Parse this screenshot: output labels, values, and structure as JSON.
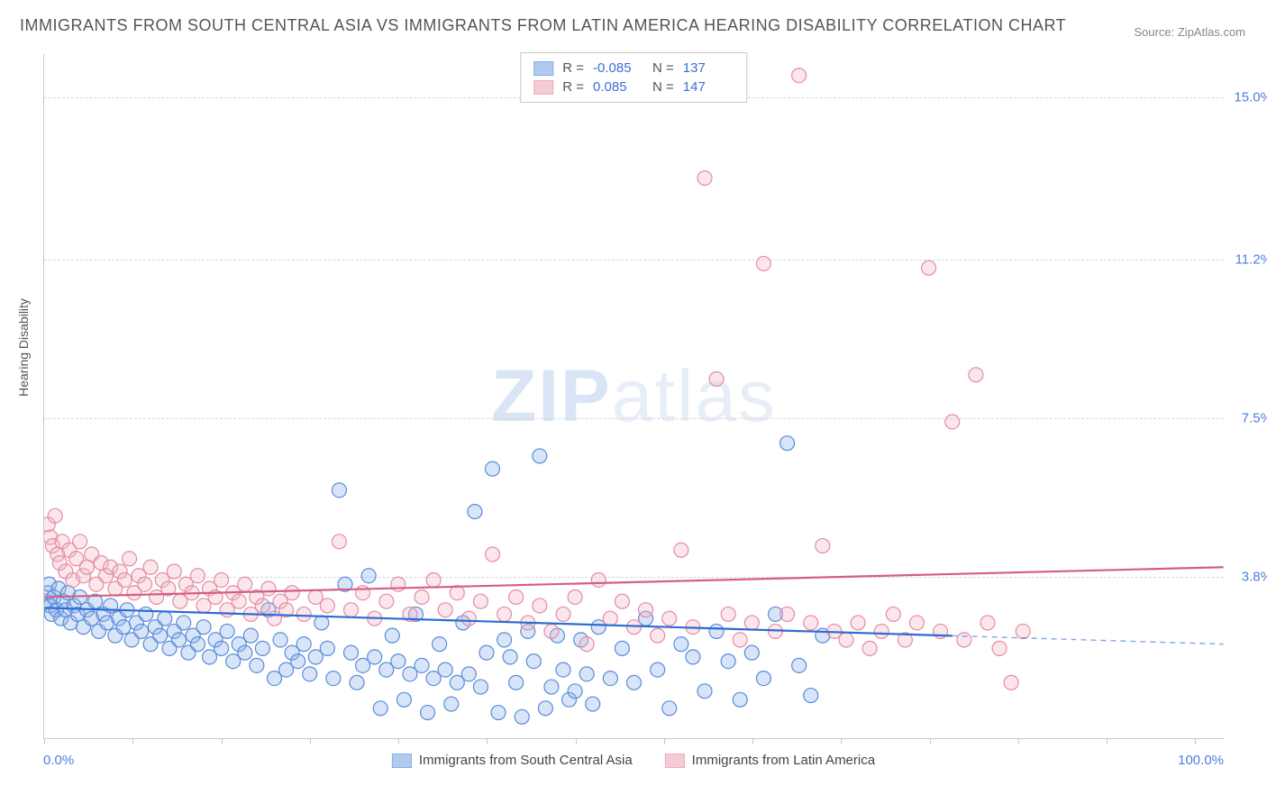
{
  "title": "IMMIGRANTS FROM SOUTH CENTRAL ASIA VS IMMIGRANTS FROM LATIN AMERICA HEARING DISABILITY CORRELATION CHART",
  "source": "Source: ZipAtlas.com",
  "watermark": {
    "zip": "ZIP",
    "atlas": "atlas"
  },
  "ylabel": "Hearing Disability",
  "chart": {
    "type": "scatter",
    "xlim": [
      0,
      100
    ],
    "ylim": [
      0,
      16
    ],
    "ytick_labels": [
      "3.8%",
      "7.5%",
      "11.2%",
      "15.0%"
    ],
    "ytick_values": [
      3.8,
      7.5,
      11.2,
      15.0
    ],
    "xtick_left": "0.0%",
    "xtick_right": "100.0%",
    "xtick_positions": [
      0,
      7.5,
      15,
      22.5,
      30,
      37.5,
      45,
      52.5,
      60,
      67.5,
      75,
      82.5,
      90,
      97.5
    ],
    "background_color": "#ffffff",
    "grid_color": "#d7d7d7",
    "marker_radius": 8,
    "marker_stroke_width": 1.2,
    "marker_fill_opacity": 0.35,
    "trend_line_width": 2.2,
    "series": [
      {
        "name": "Immigrants from South Central Asia",
        "color_fill": "#8fb4ea",
        "color_stroke": "#5a8bd9",
        "color_line": "#2d6cd3",
        "r": "-0.085",
        "n": "137",
        "trend": {
          "y_at_x0": 3.05,
          "y_at_x100": 2.2,
          "solid_until_x": 77
        },
        "points": [
          [
            0.2,
            3.2
          ],
          [
            0.3,
            3.4
          ],
          [
            0.4,
            3.6
          ],
          [
            0.5,
            3.1
          ],
          [
            0.6,
            2.9
          ],
          [
            0.8,
            3.3
          ],
          [
            1.0,
            3.0
          ],
          [
            1.2,
            3.5
          ],
          [
            1.4,
            2.8
          ],
          [
            1.6,
            3.2
          ],
          [
            1.8,
            3.0
          ],
          [
            2.0,
            3.4
          ],
          [
            2.2,
            2.7
          ],
          [
            2.5,
            3.1
          ],
          [
            2.8,
            2.9
          ],
          [
            3.0,
            3.3
          ],
          [
            3.3,
            2.6
          ],
          [
            3.6,
            3.0
          ],
          [
            4.0,
            2.8
          ],
          [
            4.3,
            3.2
          ],
          [
            4.6,
            2.5
          ],
          [
            5.0,
            2.9
          ],
          [
            5.3,
            2.7
          ],
          [
            5.6,
            3.1
          ],
          [
            6.0,
            2.4
          ],
          [
            6.3,
            2.8
          ],
          [
            6.7,
            2.6
          ],
          [
            7.0,
            3.0
          ],
          [
            7.4,
            2.3
          ],
          [
            7.8,
            2.7
          ],
          [
            8.2,
            2.5
          ],
          [
            8.6,
            2.9
          ],
          [
            9.0,
            2.2
          ],
          [
            9.4,
            2.6
          ],
          [
            9.8,
            2.4
          ],
          [
            10.2,
            2.8
          ],
          [
            10.6,
            2.1
          ],
          [
            11.0,
            2.5
          ],
          [
            11.4,
            2.3
          ],
          [
            11.8,
            2.7
          ],
          [
            12.2,
            2.0
          ],
          [
            12.6,
            2.4
          ],
          [
            13.0,
            2.2
          ],
          [
            13.5,
            2.6
          ],
          [
            14.0,
            1.9
          ],
          [
            14.5,
            2.3
          ],
          [
            15.0,
            2.1
          ],
          [
            15.5,
            2.5
          ],
          [
            16.0,
            1.8
          ],
          [
            16.5,
            2.2
          ],
          [
            17.0,
            2.0
          ],
          [
            17.5,
            2.4
          ],
          [
            18.0,
            1.7
          ],
          [
            18.5,
            2.1
          ],
          [
            19.0,
            3.0
          ],
          [
            19.5,
            1.4
          ],
          [
            20.0,
            2.3
          ],
          [
            20.5,
            1.6
          ],
          [
            21.0,
            2.0
          ],
          [
            21.5,
            1.8
          ],
          [
            22.0,
            2.2
          ],
          [
            22.5,
            1.5
          ],
          [
            23.0,
            1.9
          ],
          [
            23.5,
            2.7
          ],
          [
            24.0,
            2.1
          ],
          [
            24.5,
            1.4
          ],
          [
            25.0,
            5.8
          ],
          [
            25.5,
            3.6
          ],
          [
            26.0,
            2.0
          ],
          [
            26.5,
            1.3
          ],
          [
            27.0,
            1.7
          ],
          [
            27.5,
            3.8
          ],
          [
            28.0,
            1.9
          ],
          [
            28.5,
            0.7
          ],
          [
            29.0,
            1.6
          ],
          [
            29.5,
            2.4
          ],
          [
            30.0,
            1.8
          ],
          [
            30.5,
            0.9
          ],
          [
            31.0,
            1.5
          ],
          [
            31.5,
            2.9
          ],
          [
            32.0,
            1.7
          ],
          [
            32.5,
            0.6
          ],
          [
            33.0,
            1.4
          ],
          [
            33.5,
            2.2
          ],
          [
            34.0,
            1.6
          ],
          [
            34.5,
            0.8
          ],
          [
            35.0,
            1.3
          ],
          [
            35.5,
            2.7
          ],
          [
            36.0,
            1.5
          ],
          [
            36.5,
            5.3
          ],
          [
            37.0,
            1.2
          ],
          [
            37.5,
            2.0
          ],
          [
            38.0,
            6.3
          ],
          [
            38.5,
            0.6
          ],
          [
            39.0,
            2.3
          ],
          [
            39.5,
            1.9
          ],
          [
            40.0,
            1.3
          ],
          [
            40.5,
            0.5
          ],
          [
            41.0,
            2.5
          ],
          [
            41.5,
            1.8
          ],
          [
            42.0,
            6.6
          ],
          [
            42.5,
            0.7
          ],
          [
            43.0,
            1.2
          ],
          [
            43.5,
            2.4
          ],
          [
            44.0,
            1.6
          ],
          [
            44.5,
            0.9
          ],
          [
            45.0,
            1.1
          ],
          [
            45.5,
            2.3
          ],
          [
            46.0,
            1.5
          ],
          [
            46.5,
            0.8
          ],
          [
            47.0,
            2.6
          ],
          [
            48.0,
            1.4
          ],
          [
            49.0,
            2.1
          ],
          [
            50.0,
            1.3
          ],
          [
            51.0,
            2.8
          ],
          [
            52.0,
            1.6
          ],
          [
            53.0,
            0.7
          ],
          [
            54.0,
            2.2
          ],
          [
            55.0,
            1.9
          ],
          [
            56.0,
            1.1
          ],
          [
            57.0,
            2.5
          ],
          [
            58.0,
            1.8
          ],
          [
            59.0,
            0.9
          ],
          [
            60.0,
            2.0
          ],
          [
            61.0,
            1.4
          ],
          [
            62.0,
            2.9
          ],
          [
            63.0,
            6.9
          ],
          [
            64.0,
            1.7
          ],
          [
            65.0,
            1.0
          ],
          [
            66.0,
            2.4
          ]
        ]
      },
      {
        "name": "Immigrants from Latin America",
        "color_fill": "#f1b6c5",
        "color_stroke": "#e58ba3",
        "color_line": "#d45f82",
        "r": "0.085",
        "n": "147",
        "trend": {
          "y_at_x0": 3.3,
          "y_at_x100": 4.0,
          "solid_until_x": 100
        },
        "points": [
          [
            0.3,
            5.0
          ],
          [
            0.5,
            4.7
          ],
          [
            0.7,
            4.5
          ],
          [
            0.9,
            5.2
          ],
          [
            1.1,
            4.3
          ],
          [
            1.3,
            4.1
          ],
          [
            1.5,
            4.6
          ],
          [
            1.8,
            3.9
          ],
          [
            2.1,
            4.4
          ],
          [
            2.4,
            3.7
          ],
          [
            2.7,
            4.2
          ],
          [
            3.0,
            4.6
          ],
          [
            3.3,
            3.8
          ],
          [
            3.6,
            4.0
          ],
          [
            4.0,
            4.3
          ],
          [
            4.4,
            3.6
          ],
          [
            4.8,
            4.1
          ],
          [
            5.2,
            3.8
          ],
          [
            5.6,
            4.0
          ],
          [
            6.0,
            3.5
          ],
          [
            6.4,
            3.9
          ],
          [
            6.8,
            3.7
          ],
          [
            7.2,
            4.2
          ],
          [
            7.6,
            3.4
          ],
          [
            8.0,
            3.8
          ],
          [
            8.5,
            3.6
          ],
          [
            9.0,
            4.0
          ],
          [
            9.5,
            3.3
          ],
          [
            10.0,
            3.7
          ],
          [
            10.5,
            3.5
          ],
          [
            11.0,
            3.9
          ],
          [
            11.5,
            3.2
          ],
          [
            12.0,
            3.6
          ],
          [
            12.5,
            3.4
          ],
          [
            13.0,
            3.8
          ],
          [
            13.5,
            3.1
          ],
          [
            14.0,
            3.5
          ],
          [
            14.5,
            3.3
          ],
          [
            15.0,
            3.7
          ],
          [
            15.5,
            3.0
          ],
          [
            16.0,
            3.4
          ],
          [
            16.5,
            3.2
          ],
          [
            17.0,
            3.6
          ],
          [
            17.5,
            2.9
          ],
          [
            18.0,
            3.3
          ],
          [
            18.5,
            3.1
          ],
          [
            19.0,
            3.5
          ],
          [
            19.5,
            2.8
          ],
          [
            20.0,
            3.2
          ],
          [
            20.5,
            3.0
          ],
          [
            21.0,
            3.4
          ],
          [
            22.0,
            2.9
          ],
          [
            23.0,
            3.3
          ],
          [
            24.0,
            3.1
          ],
          [
            25.0,
            4.6
          ],
          [
            26.0,
            3.0
          ],
          [
            27.0,
            3.4
          ],
          [
            28.0,
            2.8
          ],
          [
            29.0,
            3.2
          ],
          [
            30.0,
            3.6
          ],
          [
            31.0,
            2.9
          ],
          [
            32.0,
            3.3
          ],
          [
            33.0,
            3.7
          ],
          [
            34.0,
            3.0
          ],
          [
            35.0,
            3.4
          ],
          [
            36.0,
            2.8
          ],
          [
            37.0,
            3.2
          ],
          [
            38.0,
            4.3
          ],
          [
            39.0,
            2.9
          ],
          [
            40.0,
            3.3
          ],
          [
            41.0,
            2.7
          ],
          [
            42.0,
            3.1
          ],
          [
            43.0,
            2.5
          ],
          [
            44.0,
            2.9
          ],
          [
            45.0,
            3.3
          ],
          [
            46.0,
            2.2
          ],
          [
            47.0,
            3.7
          ],
          [
            48.0,
            2.8
          ],
          [
            49.0,
            3.2
          ],
          [
            50.0,
            2.6
          ],
          [
            51.0,
            3.0
          ],
          [
            52.0,
            2.4
          ],
          [
            53.0,
            2.8
          ],
          [
            54.0,
            4.4
          ],
          [
            55.0,
            2.6
          ],
          [
            56.0,
            13.1
          ],
          [
            57.0,
            8.4
          ],
          [
            58.0,
            2.9
          ],
          [
            59.0,
            2.3
          ],
          [
            60.0,
            2.7
          ],
          [
            61.0,
            11.1
          ],
          [
            62.0,
            2.5
          ],
          [
            63.0,
            2.9
          ],
          [
            64.0,
            15.5
          ],
          [
            65.0,
            2.7
          ],
          [
            66.0,
            4.5
          ],
          [
            67.0,
            2.5
          ],
          [
            68.0,
            2.3
          ],
          [
            69.0,
            2.7
          ],
          [
            70.0,
            2.1
          ],
          [
            71.0,
            2.5
          ],
          [
            72.0,
            2.9
          ],
          [
            73.0,
            2.3
          ],
          [
            74.0,
            2.7
          ],
          [
            75.0,
            11.0
          ],
          [
            76.0,
            2.5
          ],
          [
            77.0,
            7.4
          ],
          [
            78.0,
            2.3
          ],
          [
            79.0,
            8.5
          ],
          [
            80.0,
            2.7
          ],
          [
            81.0,
            2.1
          ],
          [
            82.0,
            1.3
          ],
          [
            83.0,
            2.5
          ]
        ]
      }
    ]
  },
  "legend_top": {
    "r_label": "R =",
    "n_label": "N ="
  },
  "legend_bottom": [
    {
      "label": "Immigrants from South Central Asia",
      "fill": "#8fb4ea",
      "stroke": "#5a8bd9"
    },
    {
      "label": "Immigrants from Latin America",
      "fill": "#f1b6c5",
      "stroke": "#e58ba3"
    }
  ]
}
